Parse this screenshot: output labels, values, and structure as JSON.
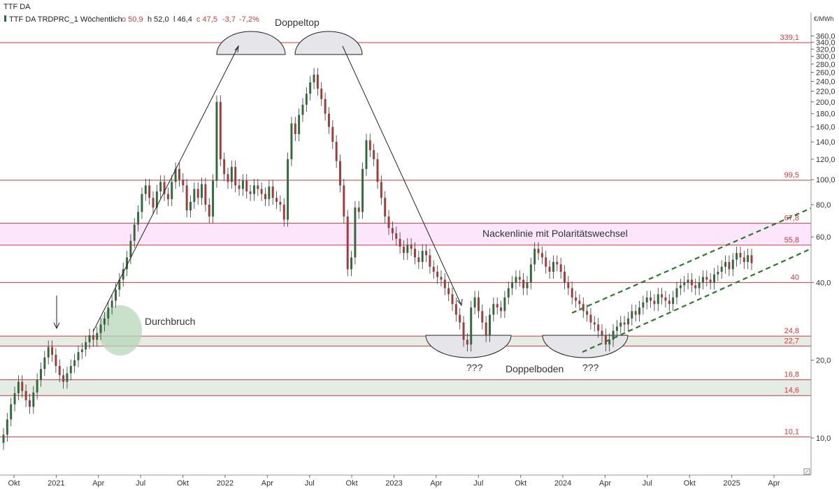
{
  "header": {
    "symbol": "TTF DA",
    "legend_name": "TTF DA TRDPRC_1 Wöchentlich",
    "open": "o 50,9",
    "high": "h 52,0",
    "low": "l 46,4",
    "close": "c 47,5",
    "change": "-3,7",
    "change_pct": "-7,2%",
    "unit": "€/MWh"
  },
  "colors": {
    "up": "#2f6b3a",
    "down": "#a23a3a",
    "level_line": "#d23a3a",
    "zone_green": "#e4ece4",
    "zone_pink": "#fbe6fb",
    "channel": "#2a7a2a"
  },
  "chart_data": {
    "type": "candlestick",
    "scale": "log",
    "x_axis_ticks": [
      "Okt",
      "2021",
      "Apr",
      "Jul",
      "Okt",
      "2022",
      "Apr",
      "Jul",
      "Okt",
      "2023",
      "Apr",
      "Jul",
      "Okt",
      "2024",
      "Apr",
      "Jul",
      "Okt",
      "2025",
      "Apr"
    ],
    "y_axis_ticks": [
      "360,0",
      "340,0",
      "320,0",
      "300,0",
      "280,0",
      "260,0",
      "240,0",
      "220,0",
      "200,0",
      "180,0",
      "160,0",
      "140,0",
      "120,0",
      "100,0",
      "80,0",
      "60,0",
      "40,0",
      "20,0",
      "10,0"
    ],
    "y_tick_values": [
      360,
      340,
      320,
      300,
      280,
      260,
      240,
      220,
      200,
      180,
      160,
      140,
      120,
      100,
      80,
      60,
      40,
      20,
      10
    ],
    "horizontal_levels": [
      {
        "value": 339.1,
        "label": "339,1"
      },
      {
        "value": 99.5,
        "label": "99,5"
      },
      {
        "value": 67.8,
        "label": "67,8"
      },
      {
        "value": 55.8,
        "label": "55,8"
      },
      {
        "value": 40,
        "label": "40"
      },
      {
        "value": 24.8,
        "label": "24,8"
      },
      {
        "value": 22.7,
        "label": "22,7"
      },
      {
        "value": 16.8,
        "label": "16,8"
      },
      {
        "value": 14.6,
        "label": "14,6"
      },
      {
        "value": 10.1,
        "label": "10,1"
      }
    ],
    "zones": [
      {
        "from": 55.8,
        "to": 67.8,
        "kind": "pink"
      },
      {
        "from": 22.7,
        "to": 24.8,
        "kind": "green"
      },
      {
        "from": 14.6,
        "to": 16.8,
        "kind": "green"
      }
    ],
    "closes": [
      10.3,
      11.8,
      13.5,
      14.9,
      16.5,
      15.2,
      14.0,
      13.2,
      15.0,
      16.8,
      18.5,
      20.5,
      22.5,
      21.0,
      19.0,
      17.5,
      16.5,
      17.8,
      19.0,
      20.0,
      21.5,
      22.0,
      23.5,
      25.0,
      24.0,
      25.5,
      27.5,
      29.0,
      32.0,
      34.0,
      37.5,
      41.0,
      45.0,
      50.0,
      58.0,
      67.0,
      75.0,
      88.0,
      95.0,
      85.0,
      78.0,
      90.0,
      98.0,
      88.0,
      84.0,
      98.0,
      110.0,
      100.0,
      95.0,
      76.0,
      82.0,
      92.0,
      85.0,
      96.0,
      80.0,
      72.0,
      99.0,
      200.0,
      120.0,
      105.0,
      98.0,
      112.0,
      95.0,
      92.0,
      99.0,
      90.0,
      88.0,
      95.0,
      92.0,
      88.0,
      84.0,
      94.0,
      85.0,
      82.0,
      80.0,
      70.0,
      120.0,
      165.0,
      150.0,
      178.0,
      195.0,
      215.0,
      238.0,
      255.0,
      225.0,
      205.0,
      180.0,
      160.0,
      140.0,
      118.0,
      95.0,
      72.0,
      45.0,
      50.0,
      78.0,
      75.0,
      110.0,
      142.0,
      130.0,
      120.0,
      98.0,
      85.0,
      72.0,
      65.0,
      62.0,
      59.0,
      55.0,
      52.0,
      56.0,
      54.0,
      50.0,
      48.0,
      53.0,
      51.0,
      46.0,
      44.0,
      42.0,
      41.0,
      38.0,
      36.0,
      33.0,
      30.0,
      28.0,
      24.0,
      23.0,
      32.0,
      35.0,
      31.0,
      28.0,
      25.0,
      30.0,
      33.0,
      32.0,
      31.0,
      35.0,
      38.0,
      40.0,
      42.0,
      41.0,
      38.0,
      40.0,
      47.0,
      54.0,
      52.0,
      50.0,
      46.0,
      44.0,
      48.0,
      47.0,
      44.0,
      40.0,
      38.0,
      35.0,
      34.0,
      33.0,
      31.0,
      30.0,
      28.0,
      27.5,
      26.0,
      25.0,
      23.0,
      24.0,
      26.0,
      27.0,
      28.0,
      27.5,
      29.0,
      31.0,
      30.0,
      32.0,
      33.5,
      35.0,
      34.0,
      33.0,
      36.0,
      35.0,
      34.0,
      33.0,
      35.0,
      38.0,
      39.0,
      40.0,
      41.0,
      39.0,
      38.0,
      40.0,
      42.0,
      41.0,
      40.0,
      43.0,
      44.0,
      46.0,
      48.0,
      45.0,
      49.0,
      52.0,
      50.0,
      48.0,
      51.0,
      47.5
    ],
    "annotations": [
      {
        "text": "Doppeltop"
      },
      {
        "text": "Durchbruch"
      },
      {
        "text": "Nackenlinie mit Polaritätswechsel"
      },
      {
        "text": "???"
      },
      {
        "text": "Doppelboden"
      },
      {
        "text": "???"
      }
    ]
  }
}
